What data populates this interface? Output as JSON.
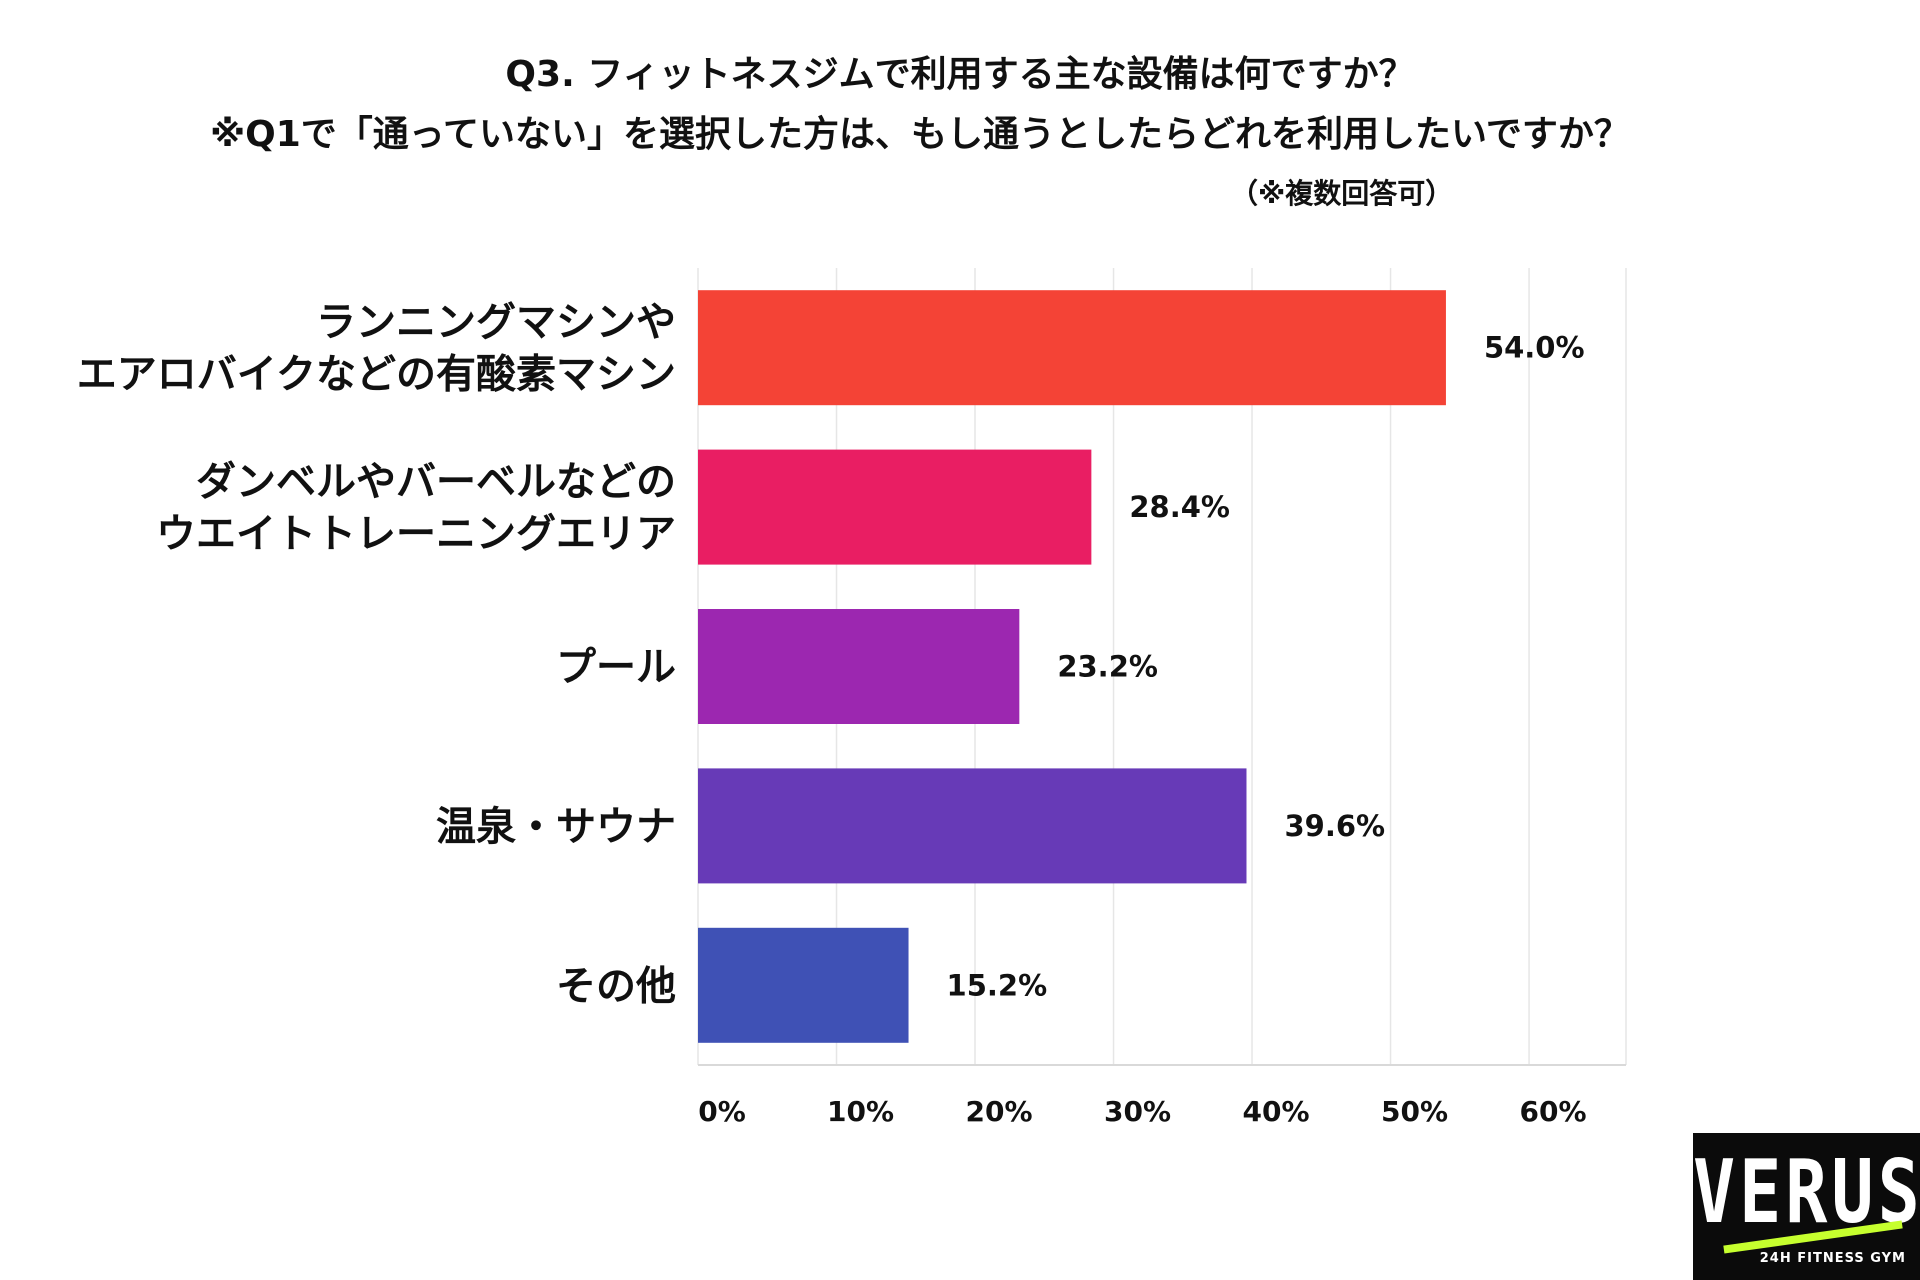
{
  "title_line1": "Q3. フィットネスジムで利用する主な設備は何ですか？",
  "title_line2": "※Q1で「通っていない」を選択した方は、もし通うとしたらどれを利用したいですか？",
  "note": "（※複数回答可）",
  "chart_data": {
    "type": "bar",
    "orientation": "horizontal",
    "title": "Q3. フィットネスジムで利用する主な設備は何ですか？ ※Q1で「通っていない」を選択した方は、もし通うとしたらどれを利用したいですか？",
    "categories": [
      [
        "ランニングマシンや",
        "エアロバイクなどの有酸素マシン"
      ],
      [
        "ダンベルやバーベルなどの",
        "ウエイトトレーニングエリア"
      ],
      [
        "プール"
      ],
      [
        "温泉・サウナ"
      ],
      [
        "その他"
      ]
    ],
    "values": [
      54.0,
      28.4,
      23.2,
      39.6,
      15.2
    ],
    "value_labels": [
      "54.0%",
      "28.4%",
      "23.2%",
      "39.6%",
      "15.2%"
    ],
    "colors": [
      "#f44336",
      "#e91e63",
      "#9c27b0",
      "#673ab7",
      "#3f51b5"
    ],
    "xlim": [
      0,
      67
    ],
    "xticks": [
      0,
      10,
      20,
      30,
      40,
      50,
      60
    ],
    "xtick_labels": [
      "0%",
      "10%",
      "20%",
      "30%",
      "40%",
      "50%",
      "60%"
    ],
    "grid": true,
    "xlabel": "",
    "ylabel": ""
  },
  "logo": {
    "wordmark": "VERUS",
    "tagline": "24H FITNESS GYM",
    "stripe_color": "#c6ff2e"
  }
}
